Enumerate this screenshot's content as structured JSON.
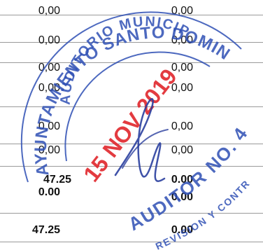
{
  "ledger": {
    "rows": [
      {
        "col1": "0,00",
        "col2": "0,00"
      },
      {
        "col1": "0,00",
        "col2": "0,00"
      },
      {
        "col1": "0,00",
        "col2": "0,00"
      },
      {
        "col1": "0,00",
        "col2": "0,00"
      },
      {
        "col1": "0,00",
        "col2": "0,00"
      },
      {
        "col1": "0,00",
        "col2": "0,00"
      },
      {
        "col1": "47.25",
        "col2": "0.00"
      },
      {
        "col1": "0.00",
        "col2": "0.00"
      },
      {
        "col1": "47.25",
        "col2": "0.00"
      }
    ]
  },
  "stamps": {
    "seal_text": "AYUNTAMIENTO SANTO DOMINGO NORTE",
    "seal_inner_text": "AUDITORIO MUNICIPAL",
    "date_stamp": "15 NOV 2019",
    "control_stamp": "AUDITOR NO. 4",
    "control_sub": "REVISION Y CONTROL",
    "seal_color": "#2e4fb5",
    "date_color": "#e0262c"
  }
}
